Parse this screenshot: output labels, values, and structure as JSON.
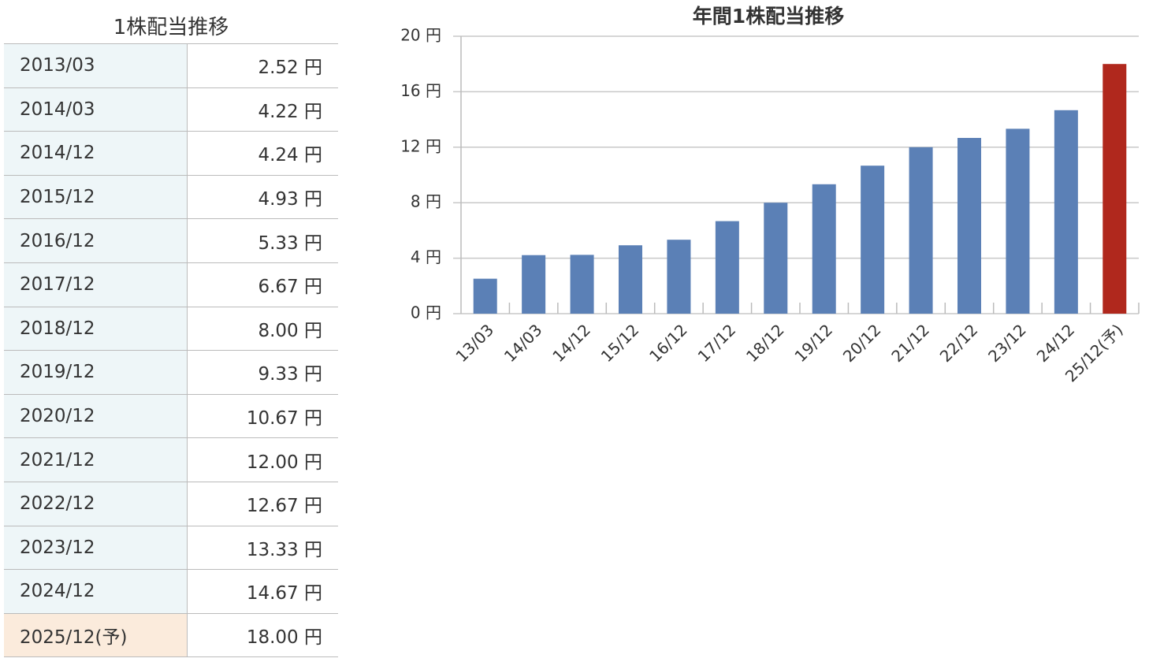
{
  "table": {
    "title": "1株配当推移",
    "rows": [
      [
        "2013/03",
        "2.52 円"
      ],
      [
        "2014/03",
        "4.22 円"
      ],
      [
        "2014/12",
        "4.24 円"
      ],
      [
        "2015/12",
        "4.93 円"
      ],
      [
        "2016/12",
        "5.33 円"
      ],
      [
        "2017/12",
        "6.67 円"
      ],
      [
        "2018/12",
        "8.00 円"
      ],
      [
        "2019/12",
        "9.33 円"
      ],
      [
        "2020/12",
        "10.67 円"
      ],
      [
        "2021/12",
        "12.00 円"
      ],
      [
        "2022/12",
        "12.67 円"
      ],
      [
        "2023/12",
        "13.33 円"
      ],
      [
        "2024/12",
        "14.67 円"
      ],
      [
        "2025/12(予)",
        "18.00 円"
      ]
    ]
  },
  "chart_data": {
    "type": "bar",
    "title": "年間1株配当推移",
    "categories": [
      "13/03",
      "14/03",
      "14/12",
      "15/12",
      "16/12",
      "17/12",
      "18/12",
      "19/12",
      "20/12",
      "21/12",
      "22/12",
      "23/12",
      "24/12",
      "25/12(予)"
    ],
    "values": [
      2.52,
      4.22,
      4.24,
      4.93,
      5.33,
      6.67,
      8.0,
      9.33,
      10.67,
      12.0,
      12.67,
      13.33,
      14.67,
      18.0
    ],
    "colors": [
      "#5b80b6",
      "#5b80b6",
      "#5b80b6",
      "#5b80b6",
      "#5b80b6",
      "#5b80b6",
      "#5b80b6",
      "#5b80b6",
      "#5b80b6",
      "#5b80b6",
      "#5b80b6",
      "#5b80b6",
      "#5b80b6",
      "#b0281d"
    ],
    "ylim": [
      0,
      20
    ],
    "yticks": [
      {
        "value": 0,
        "label": "0 円"
      },
      {
        "value": 4,
        "label": "4 円"
      },
      {
        "value": 8,
        "label": "8 円"
      },
      {
        "value": 12,
        "label": "12 円"
      },
      {
        "value": 16,
        "label": "16 円"
      },
      {
        "value": 20,
        "label": "20 円"
      }
    ],
    "grid": true
  }
}
